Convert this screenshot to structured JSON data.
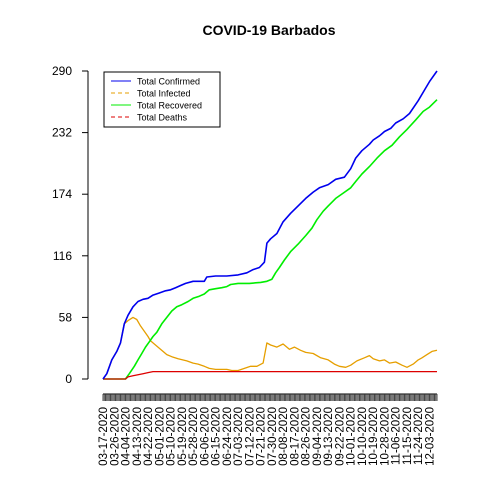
{
  "chart_data": {
    "type": "line",
    "title": "COVID-19 Barbados",
    "xlabel": "",
    "ylabel": "",
    "x_start": "03-17-2020",
    "x_end": "12-09-2020",
    "ylim": [
      0,
      290
    ],
    "yticks": [
      0,
      58,
      116,
      174,
      232,
      290
    ],
    "xtick_labels": [
      "03-17-2020",
      "03-26-2020",
      "04-04-2020",
      "04-13-2020",
      "04-22-2020",
      "05-01-2020",
      "05-10-2020",
      "05-19-2020",
      "05-28-2020",
      "06-06-2020",
      "06-15-2020",
      "06-24-2020",
      "07-03-2020",
      "07-12-2020",
      "07-21-2020",
      "07-30-2020",
      "08-08-2020",
      "08-17-2020",
      "08-26-2020",
      "09-04-2020",
      "09-13-2020",
      "09-22-2020",
      "10-01-2020",
      "10-10-2020",
      "10-19-2020",
      "10-28-2020",
      "11-06-2020",
      "11-15-2020",
      "11-24-2020",
      "12-03-2020"
    ],
    "grid": false,
    "legend_position": "top-left",
    "series": [
      {
        "name": "Total Confirmed",
        "color": "#0000ee",
        "dash": "solid",
        "points": [
          [
            "03-17-2020",
            0
          ],
          [
            "03-20-2020",
            5
          ],
          [
            "03-24-2020",
            18
          ],
          [
            "03-28-2020",
            26
          ],
          [
            "03-31-2020",
            34
          ],
          [
            "04-03-2020",
            52
          ],
          [
            "04-06-2020",
            60
          ],
          [
            "04-10-2020",
            68
          ],
          [
            "04-14-2020",
            73
          ],
          [
            "04-18-2020",
            75
          ],
          [
            "04-22-2020",
            76
          ],
          [
            "04-26-2020",
            79
          ],
          [
            "05-01-2020",
            81
          ],
          [
            "05-06-2020",
            83
          ],
          [
            "05-10-2020",
            84
          ],
          [
            "05-14-2020",
            86
          ],
          [
            "05-18-2020",
            88
          ],
          [
            "05-22-2020",
            90
          ],
          [
            "05-28-2020",
            92
          ],
          [
            "06-06-2020",
            92
          ],
          [
            "06-08-2020",
            96
          ],
          [
            "06-15-2020",
            97
          ],
          [
            "06-24-2020",
            97
          ],
          [
            "07-03-2020",
            98
          ],
          [
            "07-10-2020",
            100
          ],
          [
            "07-15-2020",
            103
          ],
          [
            "07-20-2020",
            105
          ],
          [
            "07-24-2020",
            110
          ],
          [
            "07-26-2020",
            128
          ],
          [
            "07-29-2020",
            132
          ],
          [
            "08-03-2020",
            137
          ],
          [
            "08-08-2020",
            148
          ],
          [
            "08-14-2020",
            156
          ],
          [
            "08-20-2020",
            163
          ],
          [
            "08-26-2020",
            170
          ],
          [
            "09-01-2020",
            176
          ],
          [
            "09-06-2020",
            180
          ],
          [
            "09-13-2020",
            183
          ],
          [
            "09-19-2020",
            188
          ],
          [
            "09-26-2020",
            190
          ],
          [
            "10-01-2020",
            198
          ],
          [
            "10-05-2020",
            208
          ],
          [
            "10-10-2020",
            215
          ],
          [
            "10-16-2020",
            221
          ],
          [
            "10-19-2020",
            225
          ],
          [
            "10-24-2020",
            229
          ],
          [
            "10-28-2020",
            233
          ],
          [
            "11-02-2020",
            236
          ],
          [
            "11-06-2020",
            241
          ],
          [
            "11-12-2020",
            245
          ],
          [
            "11-17-2020",
            250
          ],
          [
            "11-24-2020",
            262
          ],
          [
            "11-30-2020",
            274
          ],
          [
            "12-03-2020",
            280
          ],
          [
            "12-09-2020",
            290
          ]
        ]
      },
      {
        "name": "Total Infected",
        "color": "#e69f00",
        "dash": "dashed",
        "points": [
          [
            "03-17-2020",
            0
          ],
          [
            "03-20-2020",
            5
          ],
          [
            "03-24-2020",
            18
          ],
          [
            "03-28-2020",
            26
          ],
          [
            "03-31-2020",
            34
          ],
          [
            "04-03-2020",
            52
          ],
          [
            "04-06-2020",
            55
          ],
          [
            "04-10-2020",
            58
          ],
          [
            "04-13-2020",
            56
          ],
          [
            "04-16-2020",
            50
          ],
          [
            "04-19-2020",
            45
          ],
          [
            "04-22-2020",
            40
          ],
          [
            "04-24-2020",
            36
          ],
          [
            "04-27-2020",
            33
          ],
          [
            "05-01-2020",
            29
          ],
          [
            "05-04-2020",
            26
          ],
          [
            "05-07-2020",
            23
          ],
          [
            "05-11-2020",
            21
          ],
          [
            "05-16-2020",
            19
          ],
          [
            "05-23-2020",
            17
          ],
          [
            "05-28-2020",
            15
          ],
          [
            "06-01-2020",
            14
          ],
          [
            "06-06-2020",
            12
          ],
          [
            "06-10-2020",
            10
          ],
          [
            "06-15-2020",
            9
          ],
          [
            "06-24-2020",
            9
          ],
          [
            "06-28-2020",
            8
          ],
          [
            "07-03-2020",
            8
          ],
          [
            "07-08-2020",
            10
          ],
          [
            "07-13-2020",
            12
          ],
          [
            "07-18-2020",
            12
          ],
          [
            "07-23-2020",
            15
          ],
          [
            "07-26-2020",
            34
          ],
          [
            "07-29-2020",
            32
          ],
          [
            "08-03-2020",
            30
          ],
          [
            "08-08-2020",
            33
          ],
          [
            "08-13-2020",
            28
          ],
          [
            "08-17-2020",
            30
          ],
          [
            "08-22-2020",
            27
          ],
          [
            "08-26-2020",
            25
          ],
          [
            "09-01-2020",
            24
          ],
          [
            "09-07-2020",
            20
          ],
          [
            "09-13-2020",
            18
          ],
          [
            "09-18-2020",
            14
          ],
          [
            "09-22-2020",
            12
          ],
          [
            "09-27-2020",
            11
          ],
          [
            "10-01-2020",
            13
          ],
          [
            "10-06-2020",
            17
          ],
          [
            "10-12-2020",
            20
          ],
          [
            "10-16-2020",
            22
          ],
          [
            "10-19-2020",
            19
          ],
          [
            "10-24-2020",
            17
          ],
          [
            "10-28-2020",
            18
          ],
          [
            "11-01-2020",
            15
          ],
          [
            "11-06-2020",
            16
          ],
          [
            "11-11-2020",
            13
          ],
          [
            "11-15-2020",
            11
          ],
          [
            "11-20-2020",
            14
          ],
          [
            "11-24-2020",
            18
          ],
          [
            "11-27-2020",
            20
          ],
          [
            "12-01-2020",
            23
          ],
          [
            "12-05-2020",
            26
          ],
          [
            "12-09-2020",
            27
          ]
        ]
      },
      {
        "name": "Total Recovered",
        "color": "#00ee00",
        "dash": "solid",
        "points": [
          [
            "03-17-2020",
            0
          ],
          [
            "04-04-2020",
            0
          ],
          [
            "04-07-2020",
            5
          ],
          [
            "04-11-2020",
            12
          ],
          [
            "04-14-2020",
            18
          ],
          [
            "04-17-2020",
            24
          ],
          [
            "04-20-2020",
            30
          ],
          [
            "04-23-2020",
            35
          ],
          [
            "04-26-2020",
            40
          ],
          [
            "04-29-2020",
            44
          ],
          [
            "05-03-2020",
            52
          ],
          [
            "05-07-2020",
            58
          ],
          [
            "05-11-2020",
            64
          ],
          [
            "05-15-2020",
            68
          ],
          [
            "05-19-2020",
            70
          ],
          [
            "05-24-2020",
            73
          ],
          [
            "05-28-2020",
            76
          ],
          [
            "06-02-2020",
            78
          ],
          [
            "06-06-2020",
            80
          ],
          [
            "06-10-2020",
            84
          ],
          [
            "06-15-2020",
            85
          ],
          [
            "06-20-2020",
            86
          ],
          [
            "06-24-2020",
            87
          ],
          [
            "06-27-2020",
            89
          ],
          [
            "07-03-2020",
            90
          ],
          [
            "07-12-2020",
            90
          ],
          [
            "07-21-2020",
            91
          ],
          [
            "07-26-2020",
            92
          ],
          [
            "07-30-2020",
            94
          ],
          [
            "08-02-2020",
            100
          ],
          [
            "08-05-2020",
            105
          ],
          [
            "08-09-2020",
            112
          ],
          [
            "08-14-2020",
            120
          ],
          [
            "08-20-2020",
            127
          ],
          [
            "08-26-2020",
            135
          ],
          [
            "08-31-2020",
            142
          ],
          [
            "09-04-2020",
            150
          ],
          [
            "09-09-2020",
            158
          ],
          [
            "09-13-2020",
            163
          ],
          [
            "09-19-2020",
            170
          ],
          [
            "09-25-2020",
            175
          ],
          [
            "10-01-2020",
            180
          ],
          [
            "10-05-2020",
            186
          ],
          [
            "10-10-2020",
            193
          ],
          [
            "10-16-2020",
            200
          ],
          [
            "10-22-2020",
            208
          ],
          [
            "10-28-2020",
            215
          ],
          [
            "11-03-2020",
            220
          ],
          [
            "11-09-2020",
            228
          ],
          [
            "11-15-2020",
            235
          ],
          [
            "11-22-2020",
            244
          ],
          [
            "11-28-2020",
            252
          ],
          [
            "12-03-2020",
            256
          ],
          [
            "12-09-2020",
            263
          ]
        ]
      },
      {
        "name": "Total Deaths",
        "color": "#dd0000",
        "dash": "dashed",
        "points": [
          [
            "03-17-2020",
            0
          ],
          [
            "04-04-2020",
            0
          ],
          [
            "04-06-2020",
            2
          ],
          [
            "04-10-2020",
            3
          ],
          [
            "04-14-2020",
            4
          ],
          [
            "04-18-2020",
            5
          ],
          [
            "04-22-2020",
            6
          ],
          [
            "04-26-2020",
            7
          ],
          [
            "12-09-2020",
            7
          ]
        ]
      }
    ]
  }
}
